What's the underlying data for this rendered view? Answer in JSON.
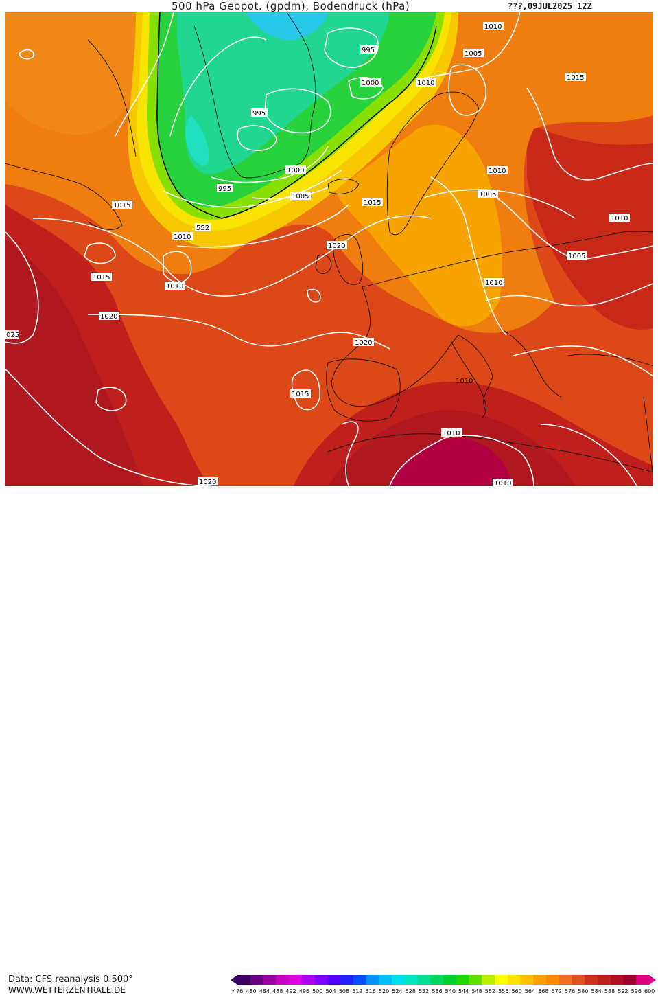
{
  "header": {
    "title": "500 hPa Geopot. (gpdm), Bodendruck (hPa)",
    "date": "???,09JUL2025 12Z"
  },
  "footer": {
    "source": "Data: CFS reanalysis 0.500°",
    "site": "WWW.WETTERZENTRALE.DE"
  },
  "legend": {
    "values": [
      "476",
      "480",
      "484",
      "488",
      "492",
      "496",
      "500",
      "504",
      "508",
      "512",
      "516",
      "520",
      "524",
      "528",
      "532",
      "536",
      "540",
      "544",
      "548",
      "552",
      "556",
      "560",
      "564",
      "568",
      "572",
      "576",
      "580",
      "584",
      "588",
      "592",
      "596",
      "600"
    ],
    "colors": [
      "#3a0060",
      "#6a0080",
      "#9a00a0",
      "#c800c8",
      "#e000e0",
      "#b000f0",
      "#8000ff",
      "#5000ff",
      "#2020ff",
      "#0050ff",
      "#0090ff",
      "#00c0ff",
      "#00e0f0",
      "#00e8c0",
      "#00e090",
      "#00d860",
      "#00d030",
      "#20d800",
      "#60e000",
      "#c0f000",
      "#ffff00",
      "#ffe000",
      "#ffc000",
      "#ffa000",
      "#ff8800",
      "#f07020",
      "#e05020",
      "#d03020",
      "#c02020",
      "#b01020",
      "#a00030",
      "#e00080"
    ]
  },
  "map": {
    "colors": {
      "ocean_deep_red": "#b01820",
      "red": "#c8281c",
      "orange_red": "#dc4818",
      "orange": "#ef7d10",
      "light_orange": "#f7a300",
      "yellow": "#f8e400",
      "lime": "#88e000",
      "green": "#28d23c",
      "teal": "#20d6a0",
      "cyan": "#28c8e8",
      "magenta_red": "#b00040"
    },
    "isobar_labels": [
      "995",
      "1000",
      "995",
      "1010",
      "1005",
      "995",
      "1000",
      "1005",
      "1015",
      "552",
      "1010",
      "1015",
      "1010",
      "1020",
      "1015",
      "1020",
      "1020",
      "025",
      "1015",
      "1010",
      "1005",
      "1010",
      "1015",
      "1010",
      "1005",
      "1010",
      "1010",
      "1010",
      "1020",
      "1010"
    ],
    "geopotential_label": "552"
  }
}
